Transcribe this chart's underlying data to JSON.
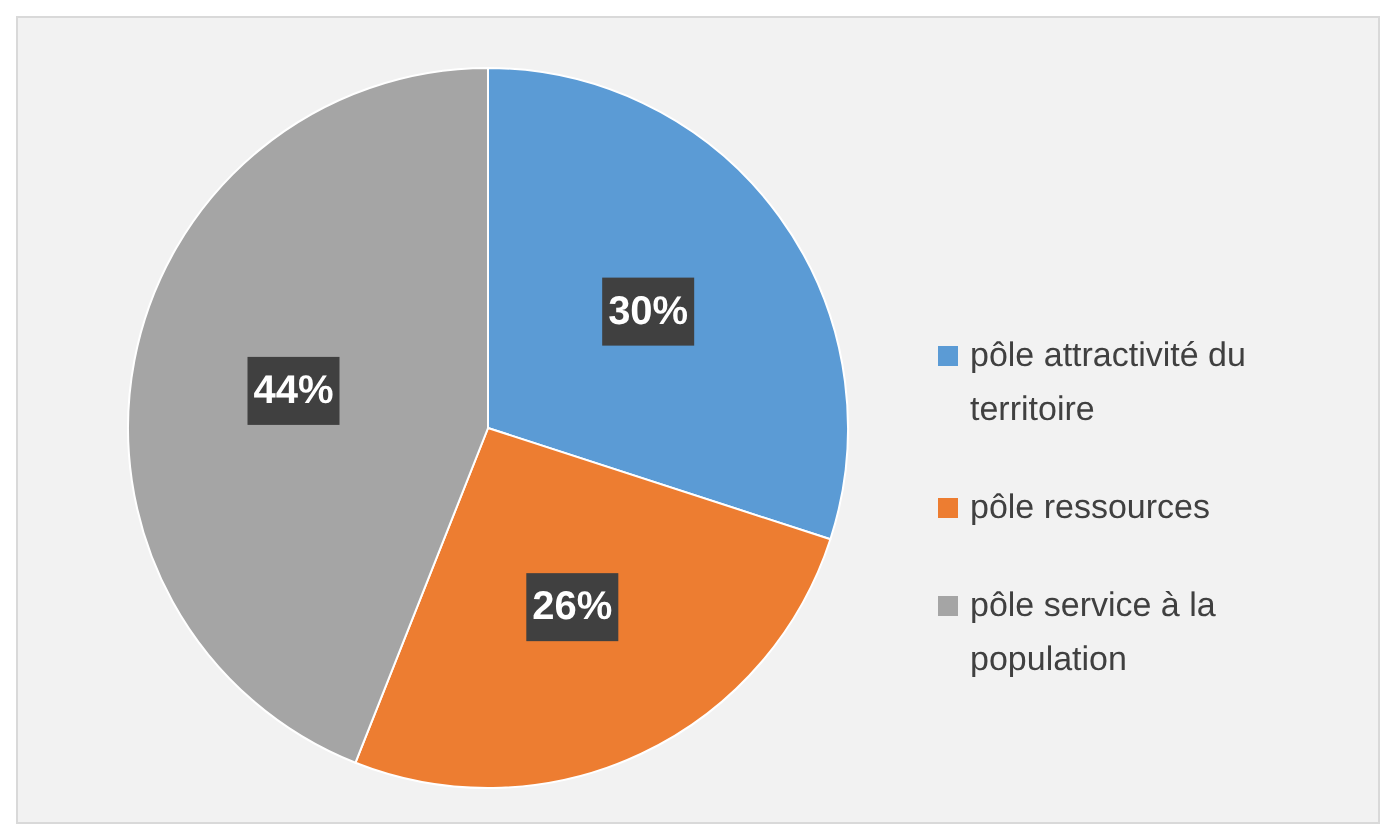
{
  "chart_data": {
    "type": "pie",
    "categories": [
      "pôle attractivité du territoire",
      "pôle ressources",
      "pôle service à la population"
    ],
    "values": [
      30,
      26,
      44
    ],
    "colors": [
      "#5b9bd5",
      "#ed7d31",
      "#a5a5a5"
    ],
    "value_labels": [
      "30%",
      "26%",
      "44%"
    ],
    "legend": "right"
  }
}
